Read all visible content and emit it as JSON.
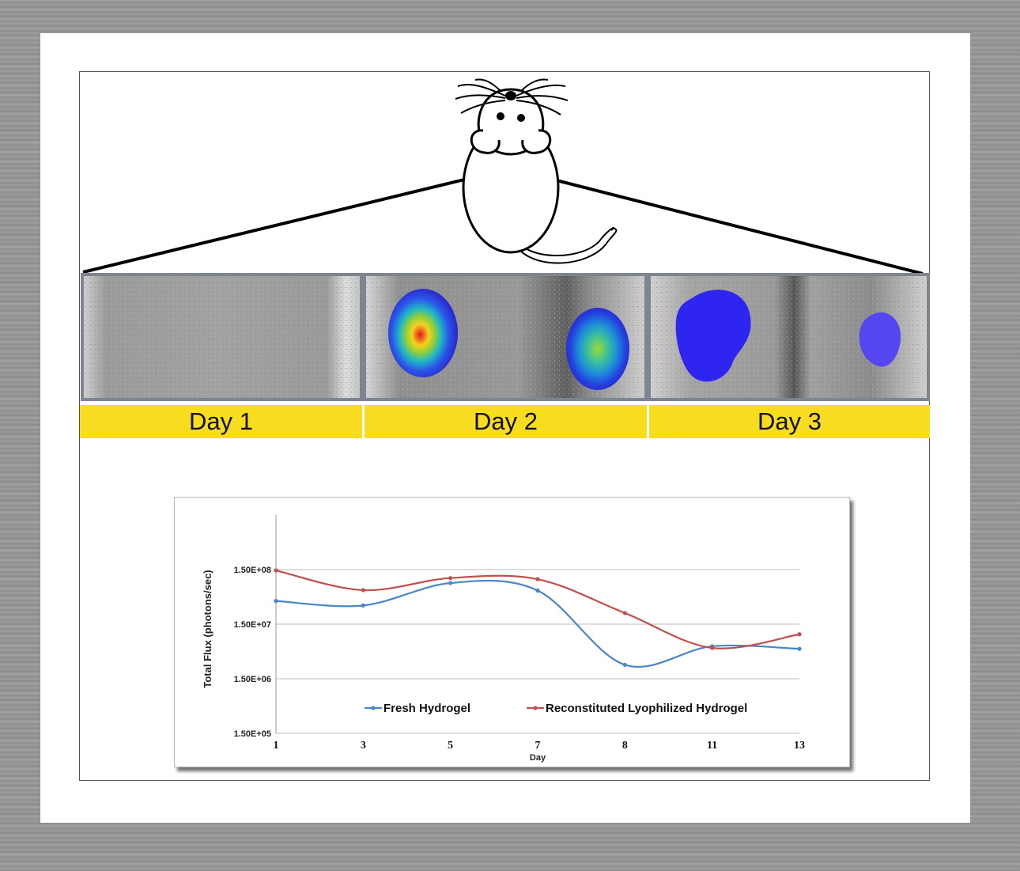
{
  "panels": [
    {
      "label": "Day 1"
    },
    {
      "label": "Day 2"
    },
    {
      "label": "Day 3"
    }
  ],
  "colors": {
    "day_bar": "#f7dc20",
    "fresh": "#4a86c8",
    "reconstituted": "#c0504d",
    "panel_border": "#7d8590"
  },
  "chart_data": {
    "type": "line",
    "xlabel": "Day",
    "ylabel": "Total Flux (photons/sec)",
    "scale": "log",
    "categories": [
      "1",
      "3",
      "5",
      "7",
      "8",
      "11",
      "13"
    ],
    "ytick_labels": [
      "1.50E+05",
      "1.50E+06",
      "1.50E+07",
      "1.50E+08"
    ],
    "ylim": [
      150000,
      1500000000
    ],
    "grid": true,
    "legend_position": "bottom-inside",
    "series": [
      {
        "name": "Fresh Hydrogel",
        "color": "#4a86c8",
        "values": [
          40000000,
          33000000,
          85000000,
          62000000,
          2700000,
          5900000,
          5300000
        ]
      },
      {
        "name": "Reconstituted Lyophilized Hydrogel",
        "color": "#c0504d",
        "values": [
          145000000,
          63000000,
          105000000,
          100000000,
          24000000,
          5500000,
          9800000
        ]
      }
    ]
  }
}
